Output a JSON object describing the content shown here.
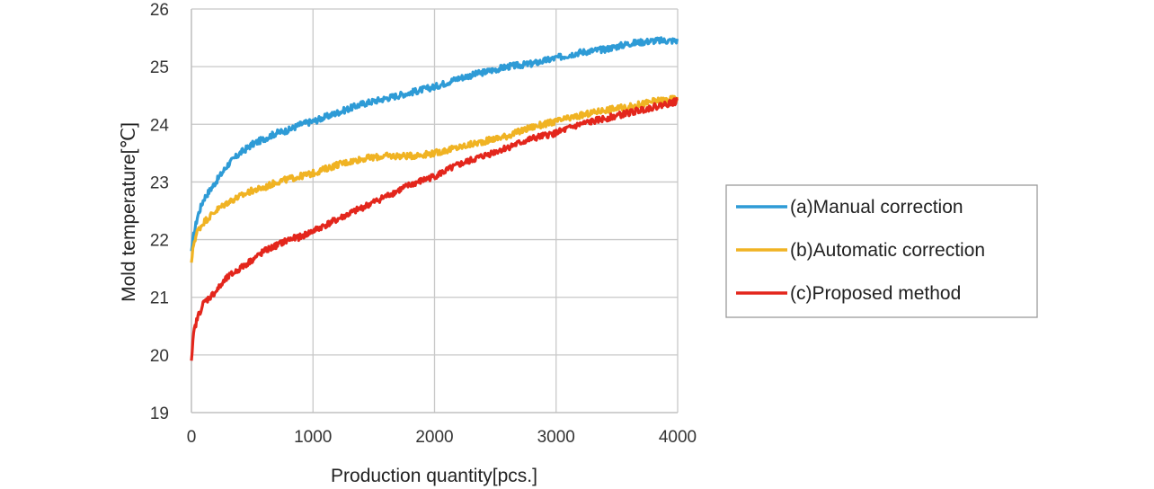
{
  "chart_data": {
    "type": "line",
    "xlabel": "Production quantity[pcs.]",
    "ylabel": "Mold temperature[℃]",
    "xlim": [
      0,
      4000
    ],
    "ylim": [
      19,
      26
    ],
    "xticks": [
      "0",
      "1000",
      "2000",
      "3000",
      "4000"
    ],
    "yticks": [
      "19",
      "20",
      "21",
      "22",
      "23",
      "24",
      "25",
      "26"
    ],
    "grid": true,
    "legend_position": "right",
    "x": [
      0,
      20,
      50,
      100,
      200,
      300,
      400,
      500,
      600,
      700,
      800,
      900,
      1000,
      1200,
      1400,
      1600,
      1800,
      2000,
      2200,
      2400,
      2600,
      2800,
      3000,
      3200,
      3400,
      3600,
      3800,
      4000
    ],
    "series": [
      {
        "name": "(a)Manual correction",
        "color": "#2e9bd6",
        "values": [
          21.8,
          22.1,
          22.4,
          22.7,
          23.0,
          23.3,
          23.5,
          23.65,
          23.75,
          23.85,
          23.9,
          24.0,
          24.05,
          24.2,
          24.35,
          24.45,
          24.55,
          24.65,
          24.8,
          24.9,
          25.0,
          25.05,
          25.15,
          25.25,
          25.3,
          25.4,
          25.45,
          25.45
        ]
      },
      {
        "name": "(b)Automatic correction",
        "color": "#f0b323",
        "values": [
          21.6,
          21.95,
          22.15,
          22.3,
          22.5,
          22.65,
          22.75,
          22.85,
          22.9,
          23.0,
          23.05,
          23.1,
          23.15,
          23.3,
          23.4,
          23.45,
          23.45,
          23.5,
          23.6,
          23.7,
          23.8,
          23.95,
          24.05,
          24.15,
          24.25,
          24.3,
          24.4,
          24.45
        ]
      },
      {
        "name": "(c)Proposed method",
        "color": "#e3261c",
        "values": [
          19.9,
          20.4,
          20.65,
          20.9,
          21.1,
          21.35,
          21.5,
          21.65,
          21.8,
          21.9,
          22.0,
          22.05,
          22.15,
          22.35,
          22.55,
          22.75,
          22.95,
          23.1,
          23.3,
          23.45,
          23.6,
          23.75,
          23.85,
          24.0,
          24.1,
          24.2,
          24.3,
          24.4
        ]
      }
    ]
  }
}
